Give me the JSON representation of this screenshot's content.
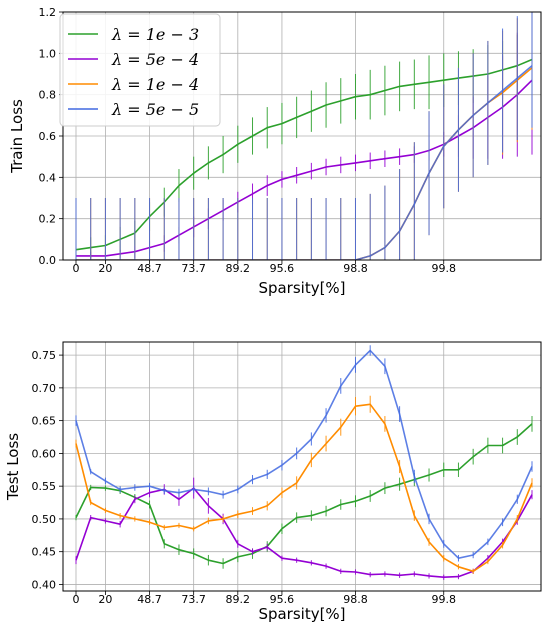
{
  "chart_data": [
    {
      "type": "line",
      "panel": "top",
      "xlabel": "Sparsity[%]",
      "ylabel": "Train Loss",
      "x_tick_labels": [
        "0",
        "20",
        "48.7",
        "73.7",
        "89.2",
        "95.6",
        "98.8",
        "99.8"
      ],
      "y_ticks": [
        "0.0",
        "0.2",
        "0.4",
        "0.6",
        "0.8",
        "1.0",
        "1.2"
      ],
      "ylim": [
        0,
        1.2
      ],
      "grid": true,
      "legend": "top-left",
      "series": [
        {
          "name": "λ = 1e − 3",
          "color": "#2ca02c",
          "x": [
            0,
            1,
            2,
            3,
            4,
            5,
            6,
            7,
            8,
            9,
            10,
            11,
            12,
            13,
            14,
            15,
            16,
            17,
            18,
            19,
            20,
            21,
            22,
            23,
            24,
            25,
            26,
            27,
            28,
            29,
            30,
            31
          ],
          "values": [
            0.05,
            0.06,
            0.07,
            0.1,
            0.13,
            0.21,
            0.28,
            0.36,
            0.42,
            0.47,
            0.51,
            0.56,
            0.6,
            0.64,
            0.66,
            0.69,
            0.72,
            0.75,
            0.77,
            0.79,
            0.8,
            0.82,
            0.84,
            0.85,
            0.86,
            0.87,
            0.88,
            0.89,
            0.9,
            0.92,
            0.94,
            0.97
          ],
          "errors": [
            0.05,
            0.05,
            0.05,
            0.06,
            0.06,
            0.07,
            0.07,
            0.08,
            0.08,
            0.08,
            0.09,
            0.09,
            0.09,
            0.1,
            0.1,
            0.1,
            0.1,
            0.11,
            0.11,
            0.11,
            0.12,
            0.12,
            0.12,
            0.12,
            0.13,
            0.13,
            0.13,
            0.13,
            0.14,
            0.14,
            0.15,
            0.16
          ]
        },
        {
          "name": "λ = 5e − 4",
          "color": "#9400d3",
          "x": [
            0,
            1,
            2,
            3,
            4,
            5,
            6,
            7,
            8,
            9,
            10,
            11,
            12,
            13,
            14,
            15,
            16,
            17,
            18,
            19,
            20,
            21,
            22,
            23,
            24,
            25,
            26,
            27,
            28,
            29,
            30,
            31
          ],
          "values": [
            0.02,
            0.02,
            0.02,
            0.03,
            0.04,
            0.06,
            0.08,
            0.12,
            0.16,
            0.2,
            0.24,
            0.28,
            0.32,
            0.36,
            0.39,
            0.41,
            0.43,
            0.45,
            0.46,
            0.47,
            0.48,
            0.49,
            0.5,
            0.51,
            0.53,
            0.56,
            0.6,
            0.64,
            0.69,
            0.74,
            0.8,
            0.87
          ],
          "errors": [
            0.02,
            0.02,
            0.02,
            0.02,
            0.03,
            0.03,
            0.04,
            0.04,
            0.05,
            0.05,
            0.05,
            0.05,
            0.05,
            0.05,
            0.04,
            0.04,
            0.04,
            0.04,
            0.04,
            0.04,
            0.04,
            0.04,
            0.04,
            0.04,
            0.05,
            0.06,
            0.1,
            0.15,
            0.2,
            0.25,
            0.3,
            0.36
          ]
        },
        {
          "name": "λ = 1e − 4",
          "color": "#ff8c00",
          "x": [
            0,
            1,
            2,
            3,
            4,
            5,
            6,
            7,
            8,
            9,
            10,
            11,
            12,
            13,
            14,
            15,
            16,
            17,
            18,
            19,
            20,
            21,
            22,
            23,
            24,
            25,
            26,
            27,
            28,
            29,
            30,
            31
          ],
          "values": [
            0,
            0,
            0,
            0,
            0,
            0,
            0,
            0,
            0,
            0,
            0,
            0,
            0,
            0,
            0,
            0,
            0,
            0,
            0,
            0,
            0.02,
            0.06,
            0.14,
            0.27,
            0.42,
            0.55,
            0.63,
            0.7,
            0.76,
            0.81,
            0.87,
            0.93
          ],
          "errors": [
            0.3,
            0.3,
            0.3,
            0.3,
            0.3,
            0.3,
            0.3,
            0.3,
            0.3,
            0.3,
            0.3,
            0.3,
            0.3,
            0.3,
            0.3,
            0.3,
            0.3,
            0.3,
            0.3,
            0.3,
            0.3,
            0.3,
            0.3,
            0.3,
            0.3,
            0.3,
            0.3,
            0.3,
            0.3,
            0.3,
            0.3,
            0.3
          ]
        },
        {
          "name": "λ = 5e − 5",
          "color": "#4169e1",
          "x": [
            0,
            1,
            2,
            3,
            4,
            5,
            6,
            7,
            8,
            9,
            10,
            11,
            12,
            13,
            14,
            15,
            16,
            17,
            18,
            19,
            20,
            21,
            22,
            23,
            24,
            25,
            26,
            27,
            28,
            29,
            30,
            31
          ],
          "values": [
            0,
            0,
            0,
            0,
            0,
            0,
            0,
            0,
            0,
            0,
            0,
            0,
            0,
            0,
            0,
            0,
            0,
            0,
            0,
            0,
            0.02,
            0.06,
            0.14,
            0.27,
            0.42,
            0.55,
            0.63,
            0.7,
            0.76,
            0.82,
            0.88,
            0.94
          ],
          "errors": [
            0.3,
            0.3,
            0.3,
            0.3,
            0.3,
            0.3,
            0.3,
            0.3,
            0.3,
            0.3,
            0.3,
            0.3,
            0.3,
            0.3,
            0.3,
            0.3,
            0.3,
            0.3,
            0.3,
            0.3,
            0.3,
            0.3,
            0.3,
            0.3,
            0.3,
            0.3,
            0.3,
            0.3,
            0.3,
            0.3,
            0.3,
            0.3
          ]
        }
      ]
    },
    {
      "type": "line",
      "panel": "bottom",
      "xlabel": "Sparsity[%]",
      "ylabel": "Test Loss",
      "x_tick_labels": [
        "0",
        "20",
        "48.7",
        "73.7",
        "89.2",
        "95.6",
        "98.8",
        "99.8"
      ],
      "y_ticks": [
        "0.40",
        "0.45",
        "0.50",
        "0.55",
        "0.60",
        "0.65",
        "0.70",
        "0.75"
      ],
      "ylim": [
        0.39,
        0.77
      ],
      "grid": true,
      "series": [
        {
          "name": "λ = 1e − 3",
          "color": "#2ca02c",
          "x": [
            0,
            1,
            2,
            3,
            4,
            5,
            6,
            7,
            8,
            9,
            10,
            11,
            12,
            13,
            14,
            15,
            16,
            17,
            18,
            19,
            20,
            21,
            22,
            23,
            24,
            25,
            26,
            27,
            28,
            29,
            30,
            31
          ],
          "values": [
            0.502,
            0.548,
            0.547,
            0.543,
            0.533,
            0.522,
            0.462,
            0.453,
            0.447,
            0.437,
            0.432,
            0.442,
            0.447,
            0.458,
            0.485,
            0.502,
            0.505,
            0.512,
            0.522,
            0.527,
            0.535,
            0.547,
            0.553,
            0.56,
            0.567,
            0.575,
            0.575,
            0.595,
            0.612,
            0.612,
            0.625,
            0.645
          ],
          "errors": [
            0.004,
            0.004,
            0.004,
            0.005,
            0.005,
            0.006,
            0.007,
            0.008,
            0.008,
            0.008,
            0.008,
            0.008,
            0.008,
            0.008,
            0.008,
            0.008,
            0.008,
            0.008,
            0.008,
            0.009,
            0.009,
            0.009,
            0.01,
            0.01,
            0.01,
            0.011,
            0.011,
            0.012,
            0.012,
            0.012,
            0.012,
            0.012
          ]
        },
        {
          "name": "λ = 5e − 4",
          "color": "#9400d3",
          "x": [
            0,
            1,
            2,
            3,
            4,
            5,
            6,
            7,
            8,
            9,
            10,
            11,
            12,
            13,
            14,
            15,
            16,
            17,
            18,
            19,
            20,
            21,
            22,
            23,
            24,
            25,
            26,
            27,
            28,
            29,
            30,
            31
          ],
          "values": [
            0.437,
            0.502,
            0.497,
            0.492,
            0.53,
            0.54,
            0.545,
            0.53,
            0.547,
            0.52,
            0.5,
            0.462,
            0.45,
            0.457,
            0.44,
            0.437,
            0.433,
            0.428,
            0.42,
            0.419,
            0.415,
            0.416,
            0.414,
            0.416,
            0.413,
            0.411,
            0.412,
            0.42,
            0.44,
            0.465,
            0.497,
            0.537
          ],
          "errors": [
            0.006,
            0.004,
            0.004,
            0.005,
            0.006,
            0.007,
            0.008,
            0.01,
            0.016,
            0.012,
            0.008,
            0.006,
            0.005,
            0.005,
            0.004,
            0.004,
            0.004,
            0.004,
            0.004,
            0.004,
            0.004,
            0.004,
            0.004,
            0.004,
            0.004,
            0.004,
            0.004,
            0.004,
            0.005,
            0.005,
            0.006,
            0.007
          ]
        },
        {
          "name": "λ = 1e − 4",
          "color": "#ff8c00",
          "x": [
            0,
            1,
            2,
            3,
            4,
            5,
            6,
            7,
            8,
            9,
            10,
            11,
            12,
            13,
            14,
            15,
            16,
            17,
            18,
            19,
            20,
            21,
            22,
            23,
            24,
            25,
            26,
            27,
            28,
            29,
            30,
            31
          ],
          "values": [
            0.615,
            0.525,
            0.513,
            0.505,
            0.5,
            0.495,
            0.487,
            0.49,
            0.485,
            0.497,
            0.5,
            0.507,
            0.512,
            0.52,
            0.54,
            0.555,
            0.59,
            0.615,
            0.64,
            0.672,
            0.675,
            0.645,
            0.58,
            0.505,
            0.465,
            0.44,
            0.427,
            0.42,
            0.435,
            0.46,
            0.5,
            0.555
          ],
          "errors": [
            0.006,
            0.004,
            0.004,
            0.004,
            0.004,
            0.004,
            0.004,
            0.004,
            0.004,
            0.005,
            0.005,
            0.006,
            0.006,
            0.007,
            0.008,
            0.01,
            0.011,
            0.012,
            0.013,
            0.014,
            0.013,
            0.012,
            0.01,
            0.008,
            0.006,
            0.005,
            0.004,
            0.004,
            0.004,
            0.005,
            0.006,
            0.007
          ]
        },
        {
          "name": "λ = 5e − 5",
          "color": "#4169e1",
          "x": [
            0,
            1,
            2,
            3,
            4,
            5,
            6,
            7,
            8,
            9,
            10,
            11,
            12,
            13,
            14,
            15,
            16,
            17,
            18,
            19,
            20,
            21,
            22,
            23,
            24,
            25,
            26,
            27,
            28,
            29,
            30,
            31
          ],
          "values": [
            0.65,
            0.572,
            0.558,
            0.545,
            0.548,
            0.55,
            0.543,
            0.54,
            0.545,
            0.542,
            0.537,
            0.545,
            0.56,
            0.568,
            0.582,
            0.6,
            0.622,
            0.658,
            0.703,
            0.735,
            0.757,
            0.733,
            0.66,
            0.565,
            0.5,
            0.462,
            0.44,
            0.445,
            0.465,
            0.495,
            0.53,
            0.58
          ],
          "errors": [
            0.008,
            0.004,
            0.005,
            0.005,
            0.005,
            0.005,
            0.005,
            0.006,
            0.006,
            0.006,
            0.006,
            0.006,
            0.007,
            0.007,
            0.008,
            0.009,
            0.01,
            0.011,
            0.012,
            0.012,
            0.008,
            0.012,
            0.012,
            0.01,
            0.008,
            0.006,
            0.005,
            0.005,
            0.005,
            0.006,
            0.007,
            0.008
          ]
        }
      ]
    }
  ]
}
